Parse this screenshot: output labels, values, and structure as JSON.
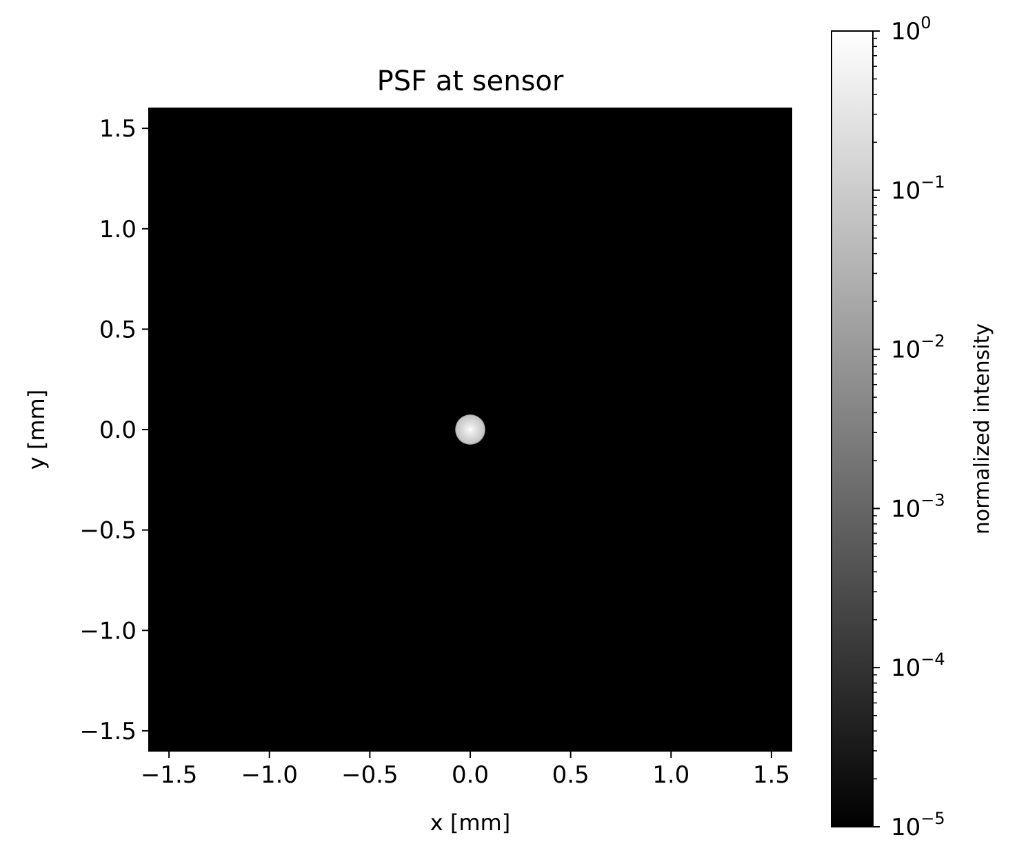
{
  "chart_data": {
    "type": "heatmap",
    "title": "PSF at sensor",
    "xlabel": "x [mm]",
    "ylabel": "y [mm]",
    "xlim": [
      -1.6,
      1.6
    ],
    "ylim": [
      -1.6,
      1.6
    ],
    "xticks": [
      -1.5,
      -1.0,
      -0.5,
      0.0,
      0.5,
      1.0,
      1.5
    ],
    "yticks": [
      -1.5,
      -1.0,
      -0.5,
      0.0,
      0.5,
      1.0,
      1.5
    ],
    "xtick_labels": [
      "−1.5",
      "−1.0",
      "−0.5",
      "0.0",
      "0.5",
      "1.0",
      "1.5"
    ],
    "ytick_labels": [
      "−1.5",
      "−1.0",
      "−0.5",
      "0.0",
      "0.5",
      "1.0",
      "1.5"
    ],
    "grid": false,
    "colormap": "gray",
    "psf_spot": {
      "center_x": 0.0,
      "center_y": 0.0,
      "radius": 0.075,
      "edge_intensity": 0.12,
      "peak_intensity": 1.0
    },
    "background_intensity": 1e-05,
    "colorbar": {
      "label": "normalized intensity",
      "scale": "log",
      "range": [
        1e-05,
        1
      ],
      "ticks": [
        {
          "value": 1e-05,
          "base": "10",
          "exponent": "−5"
        },
        {
          "value": 0.0001,
          "base": "10",
          "exponent": "−4"
        },
        {
          "value": 0.001,
          "base": "10",
          "exponent": "−3"
        },
        {
          "value": 0.01,
          "base": "10",
          "exponent": "−2"
        },
        {
          "value": 0.1,
          "base": "10",
          "exponent": "−1"
        },
        {
          "value": 1,
          "base": "10",
          "exponent": "0"
        }
      ]
    },
    "colors": {
      "background": "#000000",
      "colorbar_top": "#ffffff",
      "colorbar_bottom": "#000000",
      "axis": "#000000"
    }
  }
}
